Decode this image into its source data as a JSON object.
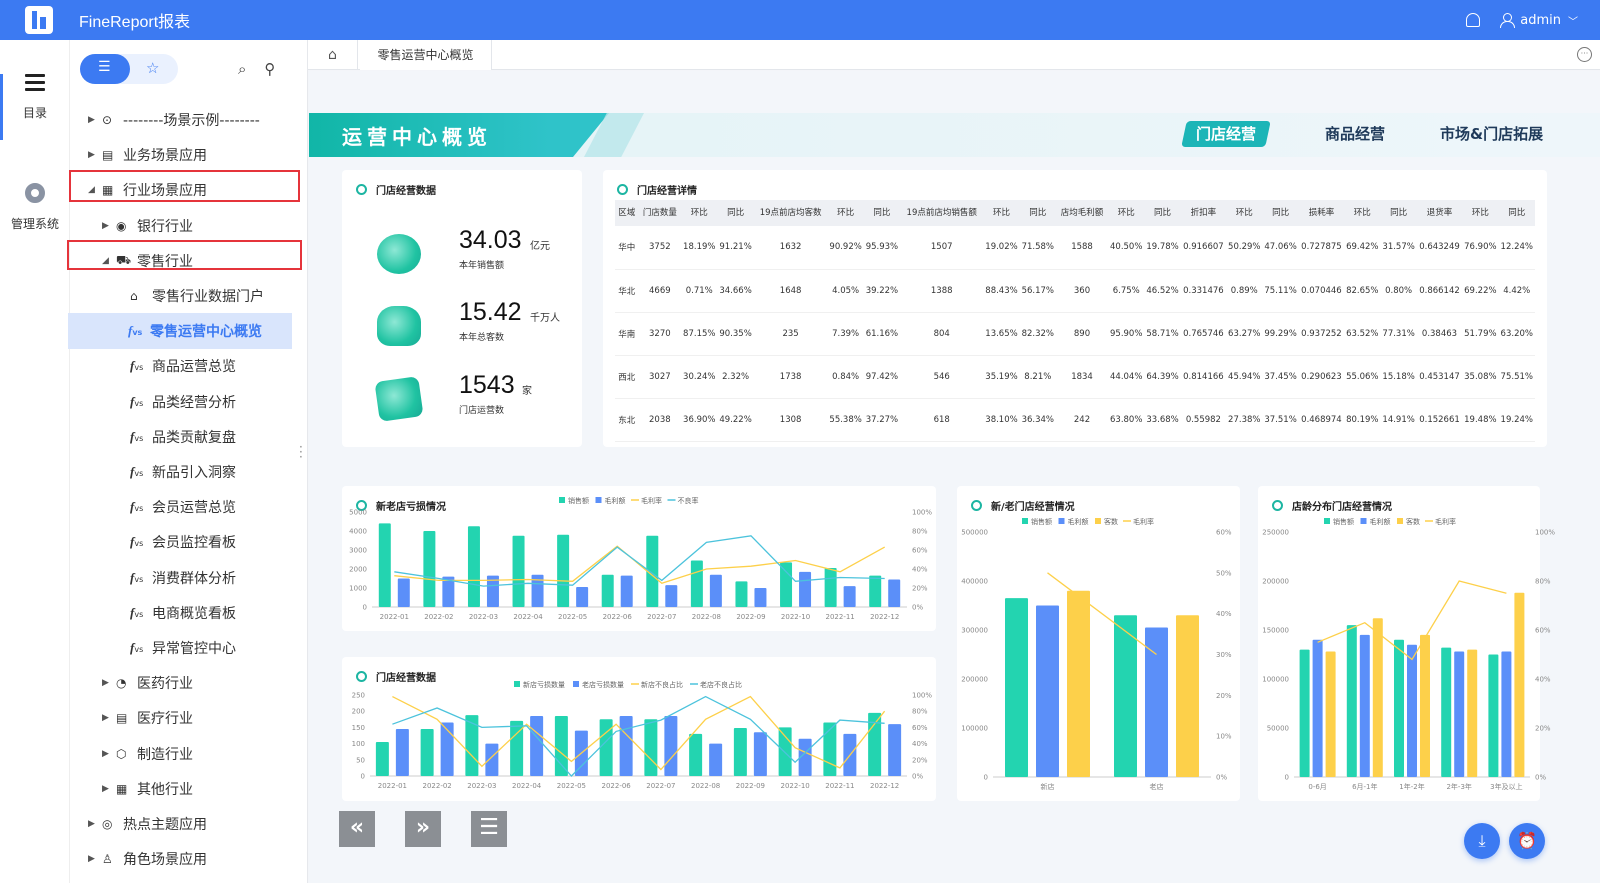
{
  "app": {
    "title": "FineReport报表",
    "user": "admin"
  },
  "rail": {
    "catalog_label": "目录",
    "manage_label": "管理系统"
  },
  "tree": [
    {
      "label": "--------场景示例--------",
      "level": 0,
      "arrow": "▶",
      "icon": "⊙"
    },
    {
      "label": "业务场景应用",
      "level": 0,
      "arrow": "▶",
      "icon": "▤"
    },
    {
      "label": "行业场景应用",
      "level": 0,
      "arrow": "◢",
      "icon": "▦",
      "boxed": true
    },
    {
      "label": "银行行业",
      "level": 1,
      "arrow": "▶",
      "icon": "◉"
    },
    {
      "label": "零售行业",
      "level": 1,
      "arrow": "◢",
      "icon": "⛟",
      "boxed": true
    },
    {
      "label": "零售行业数据门户",
      "level": 2,
      "icon": "⌂"
    },
    {
      "label": "零售运营中心概览",
      "level": 2,
      "icon": "fvs",
      "selected": true
    },
    {
      "label": "商品运营总览",
      "level": 2,
      "icon": "fvs"
    },
    {
      "label": "品类经营分析",
      "level": 2,
      "icon": "fvs"
    },
    {
      "label": "品类贡献复盘",
      "level": 2,
      "icon": "fvs"
    },
    {
      "label": "新品引入洞察",
      "level": 2,
      "icon": "fvs"
    },
    {
      "label": "会员运营总览",
      "level": 2,
      "icon": "fvs"
    },
    {
      "label": "会员监控看板",
      "level": 2,
      "icon": "fvs"
    },
    {
      "label": "消费群体分析",
      "level": 2,
      "icon": "fvs"
    },
    {
      "label": "电商概览看板",
      "level": 2,
      "icon": "fvs"
    },
    {
      "label": "异常管控中心",
      "level": 2,
      "icon": "fvs"
    },
    {
      "label": "医药行业",
      "level": 1,
      "arrow": "▶",
      "icon": "◔"
    },
    {
      "label": "医疗行业",
      "level": 1,
      "arrow": "▶",
      "icon": "▤"
    },
    {
      "label": "制造行业",
      "level": 1,
      "arrow": "▶",
      "icon": "⬡"
    },
    {
      "label": "其他行业",
      "level": 1,
      "arrow": "▶",
      "icon": "▦"
    },
    {
      "label": "热点主题应用",
      "level": 0,
      "arrow": "▶",
      "icon": "◎"
    },
    {
      "label": "角色场景应用",
      "level": 0,
      "arrow": "▶",
      "icon": "♙"
    }
  ],
  "tab": {
    "current": "零售运营中心概览"
  },
  "banner": {
    "title": "运营中心概览",
    "nav": [
      "门店经营",
      "商品经营",
      "市场&门店拓展"
    ]
  },
  "kpi_panel": {
    "title": "门店经营数据",
    "items": [
      {
        "value": "34.03",
        "unit": "亿元",
        "label": "本年销售额"
      },
      {
        "value": "15.42",
        "unit": "千万人",
        "label": "本年总客数"
      },
      {
        "value": "1543",
        "unit": "家",
        "label": "门店运营数"
      }
    ]
  },
  "detail": {
    "title": "门店经营详情",
    "headers": [
      "区域",
      "门店数量",
      "环比",
      "同比",
      "19点前店均客数",
      "环比",
      "同比",
      "19点前店均销售额",
      "环比",
      "同比",
      "店均毛利额",
      "环比",
      "同比",
      "折扣率",
      "环比",
      "同比",
      "损耗率",
      "环比",
      "同比",
      "退货率",
      "环比",
      "同比"
    ],
    "rows": [
      [
        "华中",
        "3752",
        "18.19%",
        "91.21%",
        "1632",
        "90.92%",
        "95.93%",
        "1507",
        "19.02%",
        "71.58%",
        "1588",
        "40.50%",
        "19.78%",
        "0.916607",
        "50.29%",
        "47.06%",
        "0.727875",
        "69.42%",
        "31.57%",
        "0.643249",
        "76.90%",
        "12.24%"
      ],
      [
        "华北",
        "4669",
        "0.71%",
        "34.66%",
        "1648",
        "4.05%",
        "39.22%",
        "1388",
        "88.43%",
        "56.17%",
        "360",
        "6.75%",
        "46.52%",
        "0.331476",
        "0.89%",
        "75.11%",
        "0.070446",
        "82.65%",
        "0.80%",
        "0.866142",
        "69.22%",
        "4.42%"
      ],
      [
        "华南",
        "3270",
        "87.15%",
        "90.35%",
        "235",
        "7.39%",
        "61.16%",
        "804",
        "13.65%",
        "82.32%",
        "890",
        "95.90%",
        "58.71%",
        "0.765746",
        "63.27%",
        "99.29%",
        "0.937252",
        "63.52%",
        "77.31%",
        "0.38463",
        "51.79%",
        "63.20%"
      ],
      [
        "西北",
        "3027",
        "30.24%",
        "2.32%",
        "1738",
        "0.84%",
        "97.42%",
        "546",
        "35.19%",
        "8.21%",
        "1834",
        "44.04%",
        "64.39%",
        "0.814166",
        "45.94%",
        "37.45%",
        "0.290623",
        "55.06%",
        "15.18%",
        "0.453147",
        "35.08%",
        "75.51%"
      ],
      [
        "东北",
        "2038",
        "36.90%",
        "49.22%",
        "1308",
        "55.38%",
        "37.27%",
        "618",
        "38.10%",
        "36.34%",
        "242",
        "63.80%",
        "33.68%",
        "0.55982",
        "27.38%",
        "37.51%",
        "0.468974",
        "80.19%",
        "14.91%",
        "0.152661",
        "19.48%",
        "19.24%"
      ]
    ]
  },
  "colors": {
    "green": "#23d4b0",
    "blue": "#5b8ff9",
    "yellow": "#fdd04a",
    "cyan": "#4cc3dc",
    "accent": "#3c7af2"
  },
  "chart_data": [
    {
      "title": "新老店亏损情况",
      "type": "bar",
      "categories": [
        "2022-01",
        "2022-02",
        "2022-03",
        "2022-04",
        "2022-05",
        "2022-06",
        "2022-07",
        "2022-08",
        "2022-09",
        "2022-10",
        "2022-11",
        "2022-12"
      ],
      "ylim": [
        0,
        5000
      ],
      "ylim_right": [
        0,
        100
      ],
      "yticks": [
        "0",
        "1000",
        "2000",
        "3000",
        "4000",
        "5000"
      ],
      "yticks_right": [
        "0%",
        "20%",
        "40%",
        "60%",
        "80%",
        "100%"
      ],
      "series": [
        {
          "name": "销售额",
          "kind": "bar",
          "values": [
            4400,
            4000,
            4250,
            3750,
            3800,
            1700,
            3750,
            2450,
            1350,
            2350,
            2050,
            1650
          ]
        },
        {
          "name": "毛利额",
          "kind": "bar",
          "values": [
            1500,
            1600,
            1650,
            1700,
            1050,
            1650,
            1150,
            1700,
            1000,
            1850,
            1100,
            1450
          ]
        },
        {
          "name": "毛利率",
          "kind": "line",
          "values": [
            33,
            28,
            28,
            29,
            27,
            64,
            25,
            40,
            43,
            49,
            37,
            63
          ]
        },
        {
          "name": "不良率",
          "kind": "line",
          "values": [
            37,
            30,
            22,
            25,
            23,
            63,
            28,
            68,
            75,
            27,
            31,
            30
          ]
        }
      ]
    },
    {
      "title": "门店经营数据",
      "type": "bar",
      "categories": [
        "2022-01",
        "2022-02",
        "2022-03",
        "2022-04",
        "2022-05",
        "2022-06",
        "2022-07",
        "2022-08",
        "2022-09",
        "2022-10",
        "2022-11",
        "2022-12"
      ],
      "ylim": [
        0,
        250
      ],
      "ylim_right": [
        0,
        100
      ],
      "yticks": [
        "0",
        "50",
        "100",
        "150",
        "200",
        "250"
      ],
      "yticks_right": [
        "0%",
        "20%",
        "40%",
        "60%",
        "80%",
        "100%"
      ],
      "series": [
        {
          "name": "新店亏损数量",
          "kind": "bar",
          "values": [
            105,
            145,
            188,
            170,
            185,
            175,
            175,
            130,
            148,
            150,
            165,
            195
          ]
        },
        {
          "name": "老店亏损数量",
          "kind": "bar",
          "values": [
            145,
            165,
            100,
            185,
            140,
            185,
            185,
            100,
            135,
            115,
            130,
            160
          ]
        },
        {
          "name": "新店不良占比",
          "kind": "line",
          "values": [
            98,
            70,
            12,
            64,
            18,
            64,
            8,
            70,
            98,
            35,
            10,
            80
          ]
        },
        {
          "name": "老店不良占比",
          "kind": "line",
          "values": [
            64,
            84,
            60,
            62,
            0,
            55,
            69,
            98,
            70,
            17,
            69,
            65
          ]
        }
      ]
    },
    {
      "title": "新/老门店经营情况",
      "type": "bar",
      "categories": [
        "新店",
        "老店"
      ],
      "ylim": [
        0,
        500000
      ],
      "ylim_right": [
        0,
        60
      ],
      "yticks": [
        "0",
        "100000",
        "200000",
        "300000",
        "400000",
        "500000"
      ],
      "yticks_right": [
        "0%",
        "10%",
        "20%",
        "30%",
        "40%",
        "50%",
        "60%"
      ],
      "series": [
        {
          "name": "销售额",
          "kind": "bar",
          "values": [
            365000,
            330000
          ]
        },
        {
          "name": "毛利额",
          "kind": "bar",
          "values": [
            350000,
            305000
          ]
        },
        {
          "name": "客数",
          "kind": "bar",
          "values": [
            380000,
            330000
          ]
        },
        {
          "name": "毛利率",
          "kind": "line",
          "values": [
            50,
            30
          ]
        }
      ]
    },
    {
      "title": "店龄分布门店经营情况",
      "type": "bar",
      "categories": [
        "0-6月",
        "6月-1年",
        "1年-2年",
        "2年-3年",
        "3年及以上"
      ],
      "ylim": [
        0,
        250000
      ],
      "ylim_right": [
        0,
        100
      ],
      "yticks": [
        "0",
        "50000",
        "100000",
        "150000",
        "200000",
        "250000"
      ],
      "yticks_right": [
        "0%",
        "20%",
        "40%",
        "60%",
        "80%",
        "100%"
      ],
      "series": [
        {
          "name": "销售额",
          "kind": "bar",
          "values": [
            130000,
            155000,
            140000,
            132000,
            125000
          ]
        },
        {
          "name": "毛利额",
          "kind": "bar",
          "values": [
            140000,
            145000,
            135000,
            128000,
            128000
          ]
        },
        {
          "name": "客数",
          "kind": "bar",
          "values": [
            128000,
            162000,
            145000,
            130000,
            188000
          ]
        },
        {
          "name": "毛利率",
          "kind": "line",
          "values": [
            55,
            63,
            48,
            80,
            75
          ]
        }
      ]
    }
  ]
}
